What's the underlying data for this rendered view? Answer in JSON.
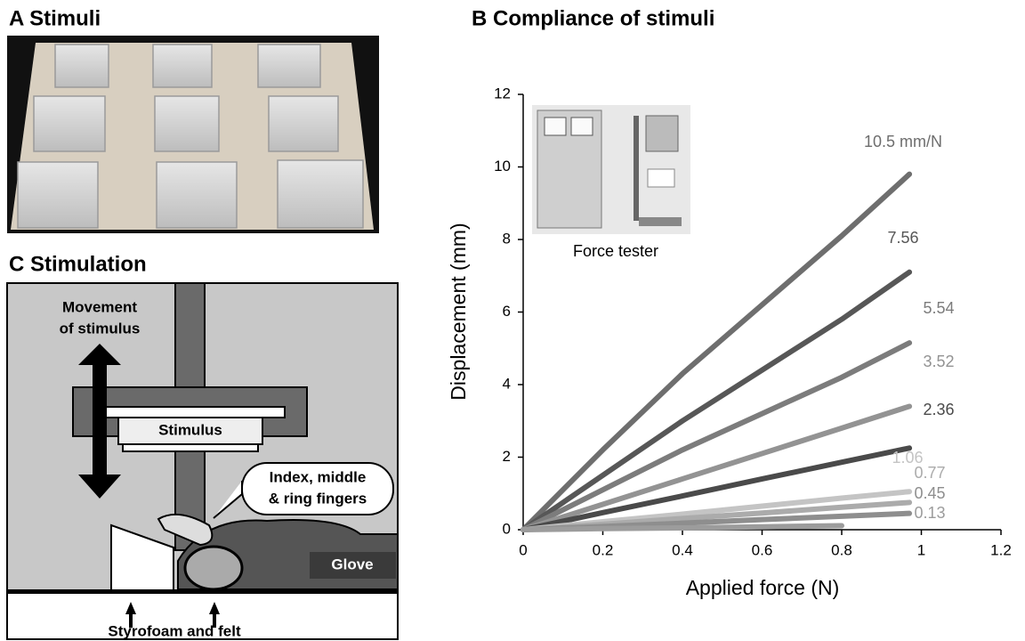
{
  "panel_a": {
    "title": "A Stimuli"
  },
  "panel_c": {
    "title": "C Stimulation",
    "movement_label": [
      "Movement",
      "of stimulus"
    ],
    "stimulus_label": "Stimulus",
    "fingers_label": [
      "Index, middle",
      "& ring fingers"
    ],
    "glove_label": "Glove",
    "base_label": "Styrofoam and felt"
  },
  "chart_data": {
    "type": "line",
    "title": "B Compliance of stimuli",
    "inset_caption": "Force tester",
    "x_label": "Applied force (N)",
    "y_label": "Displacement (mm)",
    "x": [
      0,
      0.2,
      0.4,
      0.6,
      0.8,
      0.97
    ],
    "series": [
      {
        "name": "10.5 mm/N",
        "color": "#6e6e6e",
        "values": [
          0,
          2.2,
          4.3,
          6.2,
          8.1,
          9.8
        ]
      },
      {
        "name": "7.56",
        "color": "#575757",
        "values": [
          0,
          1.5,
          3.0,
          4.4,
          5.8,
          7.1
        ]
      },
      {
        "name": "5.54",
        "color": "#7c7c7c",
        "values": [
          0,
          1.1,
          2.2,
          3.2,
          4.2,
          5.15
        ]
      },
      {
        "name": "3.52",
        "color": "#939393",
        "values": [
          0,
          0.7,
          1.4,
          2.1,
          2.8,
          3.4
        ]
      },
      {
        "name": "2.36",
        "color": "#4a4a4a",
        "values": [
          0,
          0.47,
          0.93,
          1.4,
          1.86,
          2.25
        ]
      },
      {
        "name": "1.06",
        "color": "#c4c4c4",
        "values": [
          0,
          0.22,
          0.43,
          0.65,
          0.87,
          1.05
        ]
      },
      {
        "name": "0.77",
        "color": "#ababab",
        "values": [
          0,
          0.15,
          0.31,
          0.46,
          0.62,
          0.75
        ]
      },
      {
        "name": "0.45",
        "color": "#8e8e8e",
        "values": [
          0,
          0.09,
          0.18,
          0.28,
          0.37,
          0.45
        ]
      },
      {
        "name": "0.13",
        "color": "#9c9c9c",
        "values": [
          0,
          0.03,
          0.05,
          0.08,
          0.11,
          null
        ]
      }
    ],
    "xlim": [
      0,
      1.2
    ],
    "ylim": [
      0,
      12
    ],
    "xticks": [
      0,
      0.2,
      0.4,
      0.6,
      0.8,
      1,
      1.2
    ],
    "yticks": [
      0,
      2,
      4,
      6,
      8,
      10,
      12
    ],
    "grid": false
  }
}
